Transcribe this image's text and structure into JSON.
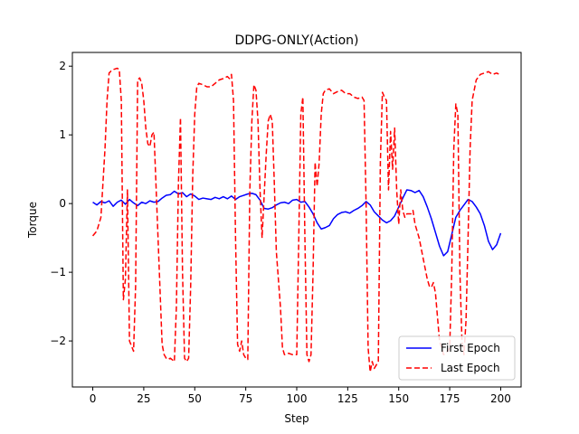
{
  "chart_data": {
    "type": "line",
    "title": "DDPG-ONLY(Action)",
    "xlabel": "Step",
    "ylabel": "Torque",
    "xlim": [
      -10,
      210
    ],
    "ylim": [
      -2.67,
      2.2
    ],
    "xticks": [
      0,
      25,
      50,
      75,
      100,
      125,
      150,
      175,
      200
    ],
    "yticks": [
      -2,
      -1,
      0,
      1,
      2
    ],
    "xtick_labels": [
      "0",
      "25",
      "50",
      "75",
      "100",
      "125",
      "150",
      "175",
      "200"
    ],
    "ytick_labels": [
      "−2",
      "−1",
      "0",
      "1",
      "2"
    ],
    "grid": false,
    "legend_position": "lower right",
    "series": [
      {
        "name": "First Epoch",
        "color": "#0000ff",
        "style": "solid",
        "points": [
          [
            0,
            0.02
          ],
          [
            2,
            -0.02
          ],
          [
            4,
            0.03
          ],
          [
            6,
            0.01
          ],
          [
            8,
            0.04
          ],
          [
            10,
            -0.04
          ],
          [
            12,
            0.02
          ],
          [
            14,
            0.05
          ],
          [
            16,
            -0.01
          ],
          [
            18,
            0.06
          ],
          [
            20,
            0.01
          ],
          [
            22,
            -0.03
          ],
          [
            24,
            0.02
          ],
          [
            26,
            0.0
          ],
          [
            28,
            0.04
          ],
          [
            30,
            0.02
          ],
          [
            32,
            0.03
          ],
          [
            34,
            0.08
          ],
          [
            36,
            0.12
          ],
          [
            38,
            0.13
          ],
          [
            40,
            0.18
          ],
          [
            42,
            0.14
          ],
          [
            44,
            0.16
          ],
          [
            46,
            0.1
          ],
          [
            48,
            0.14
          ],
          [
            50,
            0.11
          ],
          [
            52,
            0.06
          ],
          [
            54,
            0.08
          ],
          [
            56,
            0.07
          ],
          [
            58,
            0.06
          ],
          [
            60,
            0.09
          ],
          [
            62,
            0.07
          ],
          [
            64,
            0.1
          ],
          [
            66,
            0.07
          ],
          [
            68,
            0.11
          ],
          [
            70,
            0.06
          ],
          [
            72,
            0.1
          ],
          [
            74,
            0.12
          ],
          [
            76,
            0.14
          ],
          [
            78,
            0.15
          ],
          [
            80,
            0.13
          ],
          [
            82,
            0.05
          ],
          [
            84,
            -0.07
          ],
          [
            86,
            -0.08
          ],
          [
            88,
            -0.06
          ],
          [
            90,
            -0.02
          ],
          [
            92,
            0.01
          ],
          [
            94,
            0.02
          ],
          [
            96,
            0.0
          ],
          [
            98,
            0.05
          ],
          [
            100,
            0.06
          ],
          [
            102,
            0.02
          ],
          [
            104,
            0.03
          ],
          [
            106,
            -0.05
          ],
          [
            108,
            -0.15
          ],
          [
            110,
            -0.28
          ],
          [
            112,
            -0.37
          ],
          [
            114,
            -0.35
          ],
          [
            116,
            -0.32
          ],
          [
            118,
            -0.22
          ],
          [
            120,
            -0.16
          ],
          [
            122,
            -0.13
          ],
          [
            124,
            -0.12
          ],
          [
            126,
            -0.14
          ],
          [
            128,
            -0.1
          ],
          [
            130,
            -0.07
          ],
          [
            132,
            -0.03
          ],
          [
            134,
            0.03
          ],
          [
            136,
            -0.02
          ],
          [
            138,
            -0.12
          ],
          [
            140,
            -0.18
          ],
          [
            142,
            -0.24
          ],
          [
            144,
            -0.28
          ],
          [
            146,
            -0.25
          ],
          [
            148,
            -0.18
          ],
          [
            150,
            -0.05
          ],
          [
            152,
            0.08
          ],
          [
            154,
            0.2
          ],
          [
            156,
            0.19
          ],
          [
            158,
            0.16
          ],
          [
            160,
            0.19
          ],
          [
            162,
            0.1
          ],
          [
            164,
            -0.05
          ],
          [
            166,
            -0.22
          ],
          [
            168,
            -0.42
          ],
          [
            170,
            -0.62
          ],
          [
            172,
            -0.76
          ],
          [
            174,
            -0.7
          ],
          [
            176,
            -0.45
          ],
          [
            178,
            -0.2
          ],
          [
            180,
            -0.1
          ],
          [
            182,
            -0.02
          ],
          [
            184,
            0.06
          ],
          [
            186,
            0.03
          ],
          [
            188,
            -0.05
          ],
          [
            190,
            -0.15
          ],
          [
            192,
            -0.32
          ],
          [
            194,
            -0.55
          ],
          [
            196,
            -0.67
          ],
          [
            198,
            -0.6
          ],
          [
            200,
            -0.43
          ]
        ]
      },
      {
        "name": "Last Epoch",
        "color": "#ff0000",
        "style": "dashed",
        "points": [
          [
            0,
            -0.47
          ],
          [
            2,
            -0.4
          ],
          [
            4,
            -0.2
          ],
          [
            6,
            0.8
          ],
          [
            7,
            1.5
          ],
          [
            8,
            1.9
          ],
          [
            9,
            1.93
          ],
          [
            10,
            1.95
          ],
          [
            12,
            1.97
          ],
          [
            13,
            1.95
          ],
          [
            14,
            1.5
          ],
          [
            15,
            -1.4
          ],
          [
            16,
            -1.1
          ],
          [
            17,
            0.2
          ],
          [
            18,
            -2.0
          ],
          [
            20,
            -2.15
          ],
          [
            21,
            -1.2
          ],
          [
            22,
            1.8
          ],
          [
            23,
            1.83
          ],
          [
            24,
            1.75
          ],
          [
            25,
            1.5
          ],
          [
            26,
            1.1
          ],
          [
            27,
            0.87
          ],
          [
            28,
            0.83
          ],
          [
            29,
            1.0
          ],
          [
            30,
            1.04
          ],
          [
            32,
            -0.5
          ],
          [
            34,
            -2.05
          ],
          [
            35,
            -2.2
          ],
          [
            36,
            -2.25
          ],
          [
            37,
            -2.27
          ],
          [
            38,
            -2.25
          ],
          [
            40,
            -2.3
          ],
          [
            41,
            -1.5
          ],
          [
            42,
            0.3
          ],
          [
            43,
            1.25
          ],
          [
            44,
            -1.0
          ],
          [
            45,
            -2.25
          ],
          [
            46,
            -2.3
          ],
          [
            47,
            -2.25
          ],
          [
            48,
            -1.2
          ],
          [
            49,
            0.4
          ],
          [
            50,
            1.3
          ],
          [
            51,
            1.7
          ],
          [
            52,
            1.75
          ],
          [
            54,
            1.73
          ],
          [
            56,
            1.7
          ],
          [
            58,
            1.7
          ],
          [
            60,
            1.75
          ],
          [
            62,
            1.8
          ],
          [
            64,
            1.82
          ],
          [
            66,
            1.85
          ],
          [
            67,
            1.82
          ],
          [
            68,
            1.88
          ],
          [
            69,
            1.5
          ],
          [
            70,
            -0.5
          ],
          [
            71,
            -2.05
          ],
          [
            72,
            -2.15
          ],
          [
            73,
            -2.0
          ],
          [
            74,
            -2.2
          ],
          [
            75,
            -2.25
          ],
          [
            76,
            -2.27
          ],
          [
            77,
            0.2
          ],
          [
            78,
            1.2
          ],
          [
            79,
            1.73
          ],
          [
            80,
            1.65
          ],
          [
            81,
            1.2
          ],
          [
            82,
            0.2
          ],
          [
            83,
            -0.5
          ],
          [
            84,
            0.1
          ],
          [
            85,
            0.7
          ],
          [
            86,
            1.2
          ],
          [
            87,
            1.3
          ],
          [
            88,
            1.2
          ],
          [
            89,
            0.3
          ],
          [
            90,
            -0.7
          ],
          [
            91,
            -1.1
          ],
          [
            92,
            -1.5
          ],
          [
            93,
            -2.1
          ],
          [
            94,
            -2.2
          ],
          [
            96,
            -2.18
          ],
          [
            98,
            -2.2
          ],
          [
            100,
            -2.2
          ],
          [
            101,
            -0.5
          ],
          [
            102,
            1.3
          ],
          [
            103,
            1.55
          ],
          [
            104,
            -0.5
          ],
          [
            105,
            -2.2
          ],
          [
            106,
            -2.3
          ],
          [
            107,
            -2.2
          ],
          [
            108,
            -1.0
          ],
          [
            109,
            0.6
          ],
          [
            110,
            0.25
          ],
          [
            111,
            0.6
          ],
          [
            112,
            1.3
          ],
          [
            113,
            1.6
          ],
          [
            114,
            1.65
          ],
          [
            116,
            1.67
          ],
          [
            118,
            1.6
          ],
          [
            120,
            1.63
          ],
          [
            122,
            1.65
          ],
          [
            124,
            1.6
          ],
          [
            126,
            1.6
          ],
          [
            128,
            1.55
          ],
          [
            130,
            1.53
          ],
          [
            132,
            1.55
          ],
          [
            133,
            1.5
          ],
          [
            134,
            0.0
          ],
          [
            135,
            -2.1
          ],
          [
            136,
            -2.45
          ],
          [
            137,
            -2.3
          ],
          [
            138,
            -2.4
          ],
          [
            139,
            -2.35
          ],
          [
            140,
            -2.3
          ],
          [
            141,
            0.6
          ],
          [
            142,
            1.62
          ],
          [
            143,
            1.55
          ],
          [
            144,
            1.5
          ],
          [
            145,
            0.2
          ],
          [
            146,
            1.05
          ],
          [
            147,
            0.5
          ],
          [
            148,
            1.1
          ],
          [
            149,
            0.2
          ],
          [
            150,
            -0.3
          ],
          [
            151,
            0.2
          ],
          [
            152,
            -0.1
          ],
          [
            153,
            -0.2
          ],
          [
            154,
            -0.15
          ],
          [
            156,
            -0.15
          ],
          [
            157,
            -0.1
          ],
          [
            158,
            -0.3
          ],
          [
            160,
            -0.5
          ],
          [
            162,
            -0.8
          ],
          [
            164,
            -1.1
          ],
          [
            165,
            -1.2
          ],
          [
            166,
            -1.22
          ],
          [
            167,
            -1.15
          ],
          [
            168,
            -1.3
          ],
          [
            170,
            -2.0
          ],
          [
            172,
            -2.2
          ],
          [
            174,
            -2.15
          ],
          [
            175,
            -2.1
          ],
          [
            176,
            -1.0
          ],
          [
            177,
            0.8
          ],
          [
            178,
            1.45
          ],
          [
            179,
            1.3
          ],
          [
            180,
            -1.0
          ],
          [
            181,
            -2.0
          ],
          [
            182,
            -2.2
          ],
          [
            183,
            -1.7
          ],
          [
            184,
            -0.5
          ],
          [
            185,
            0.8
          ],
          [
            186,
            1.5
          ],
          [
            188,
            1.8
          ],
          [
            190,
            1.88
          ],
          [
            192,
            1.9
          ],
          [
            194,
            1.92
          ],
          [
            196,
            1.88
          ],
          [
            198,
            1.9
          ],
          [
            200,
            1.87
          ]
        ]
      }
    ]
  }
}
